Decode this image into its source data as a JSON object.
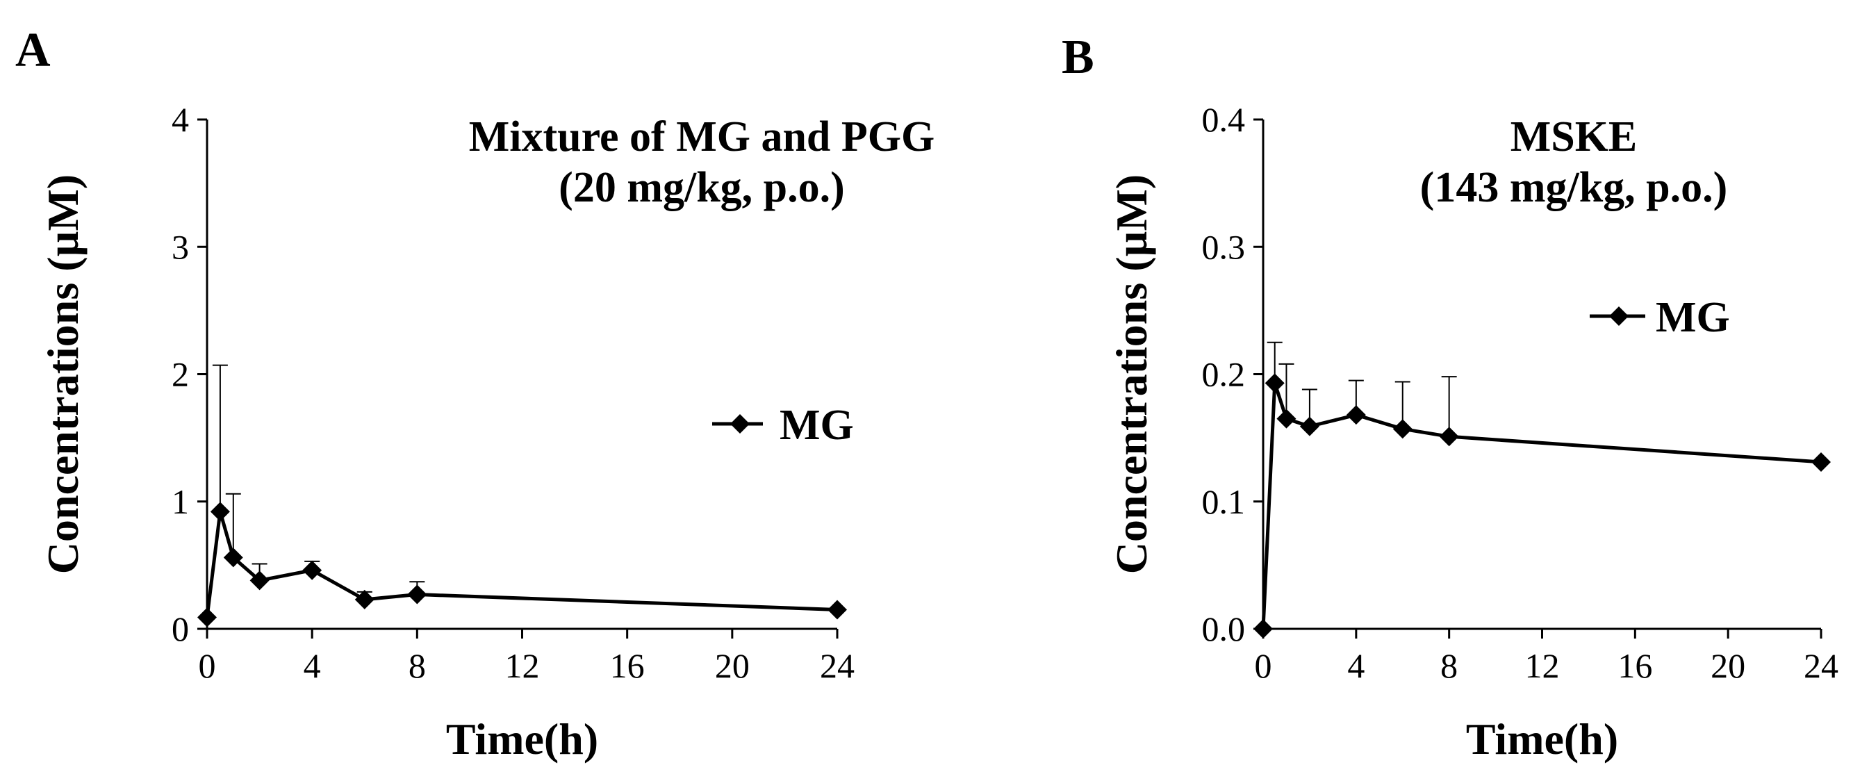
{
  "chart_data": [
    {
      "panel_label": "A",
      "type": "line",
      "title_lines": [
        "Mixture of MG and PGG",
        "(20 mg/kg, p.o.)"
      ],
      "xlabel": "Time(h)",
      "ylabel": "Concentrations (µM)",
      "xlim": [
        0,
        24
      ],
      "ylim": [
        0,
        4
      ],
      "xticks": [
        0,
        4,
        8,
        12,
        16,
        20,
        24
      ],
      "yticks": [
        0,
        1,
        2,
        3,
        4
      ],
      "ytick_labels": [
        "0",
        "1",
        "2",
        "3",
        "4"
      ],
      "grid": false,
      "legend_position": "right-middle",
      "series": [
        {
          "name": "MG",
          "marker": "diamond",
          "color": "#000000",
          "x": [
            0,
            0.5,
            1,
            2,
            4,
            6,
            8,
            24
          ],
          "y": [
            0.09,
            0.92,
            0.56,
            0.38,
            0.46,
            0.23,
            0.27,
            0.15
          ],
          "error_upper": [
            0,
            1.15,
            0.5,
            0.13,
            0.07,
            0.06,
            0.1,
            0
          ]
        }
      ]
    },
    {
      "panel_label": "B",
      "type": "line",
      "title_lines": [
        "MSKE",
        "(143 mg/kg, p.o.)"
      ],
      "xlabel": "Time(h)",
      "ylabel": "Concentrations (µM)",
      "xlim": [
        0,
        24
      ],
      "ylim": [
        0,
        0.4
      ],
      "xticks": [
        0,
        4,
        8,
        12,
        16,
        20,
        24
      ],
      "yticks": [
        0,
        0.1,
        0.2,
        0.3,
        0.4
      ],
      "ytick_labels": [
        "0.0",
        "0.1",
        "0.2",
        "0.3",
        "0.4"
      ],
      "grid": false,
      "legend_position": "top-right",
      "series": [
        {
          "name": "MG",
          "marker": "diamond",
          "color": "#000000",
          "x": [
            0,
            0.5,
            1,
            2,
            4,
            6,
            8,
            24
          ],
          "y": [
            0.0,
            0.193,
            0.165,
            0.159,
            0.168,
            0.157,
            0.151,
            0.131
          ],
          "error_upper": [
            0,
            0.032,
            0.043,
            0.029,
            0.027,
            0.037,
            0.047,
            0
          ]
        }
      ]
    }
  ]
}
